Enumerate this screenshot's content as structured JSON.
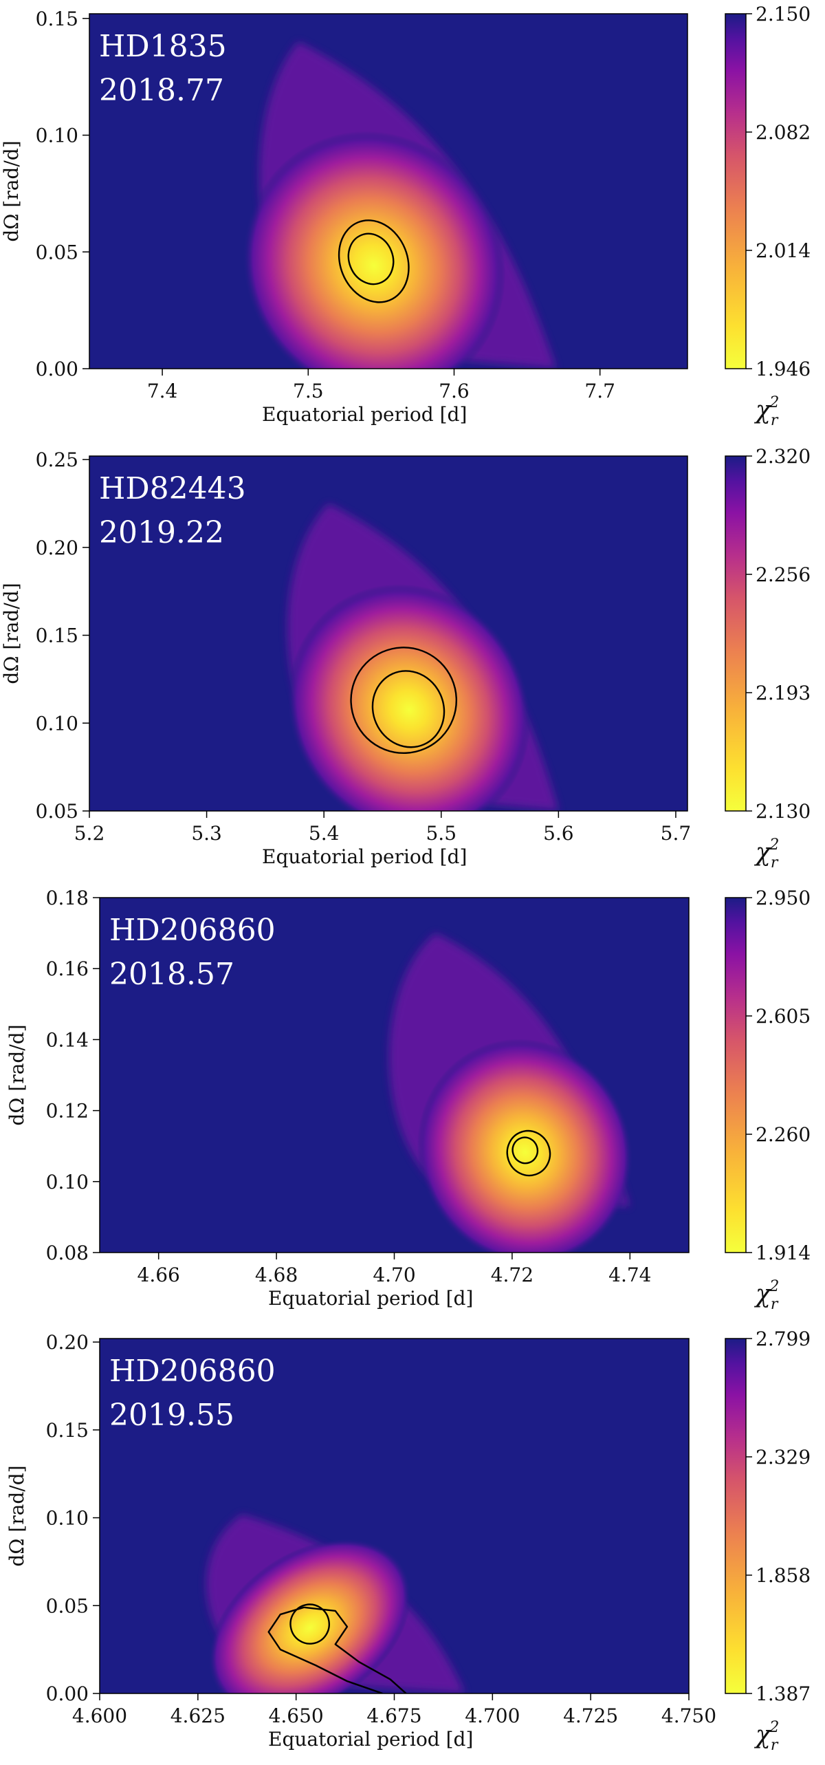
{
  "figure": {
    "cbar_symbol": "χ",
    "cbar_sub": "r",
    "cbar_sup": "2"
  },
  "chart_data": [
    {
      "type": "heatmap",
      "star": "HD1835",
      "epoch": "2018.77",
      "xlabel": "Equatorial period [d]",
      "ylabel": "dΩ [rad/d]",
      "xlim": [
        7.35,
        7.76
      ],
      "ylim": [
        0.0,
        0.152
      ],
      "xticks": [
        {
          "v": 7.4,
          "t": "7.4"
        },
        {
          "v": 7.5,
          "t": "7.5"
        },
        {
          "v": 7.6,
          "t": "7.6"
        },
        {
          "v": 7.7,
          "t": "7.7"
        }
      ],
      "yticks": [
        {
          "v": 0.0,
          "t": "0.00"
        },
        {
          "v": 0.05,
          "t": "0.05"
        },
        {
          "v": 0.1,
          "t": "0.10"
        },
        {
          "v": 0.15,
          "t": "0.15"
        }
      ],
      "cbar_ticks": [
        "2.150",
        "2.082",
        "2.014",
        "1.946"
      ],
      "cbar_range": [
        1.946,
        2.15
      ],
      "minimum": {
        "x": 7.543,
        "y": 0.046
      },
      "extent": {
        "x_low": 7.46,
        "x_high": 7.67,
        "y_high": 0.14,
        "y_low": 0.0
      },
      "contours": [
        {
          "cx": 7.543,
          "cy": 0.047,
          "rx": 0.015,
          "ry": 0.011,
          "tilt": 1.1
        },
        {
          "cx": 7.545,
          "cy": 0.046,
          "rx": 0.023,
          "ry": 0.018,
          "tilt": 1.1
        }
      ]
    },
    {
      "type": "heatmap",
      "star": "HD82443",
      "epoch": "2019.22",
      "xlabel": "Equatorial period [d]",
      "ylabel": "dΩ [rad/d]",
      "xlim": [
        5.2,
        5.71
      ],
      "ylim": [
        0.05,
        0.252
      ],
      "xticks": [
        {
          "v": 5.2,
          "t": "5.2"
        },
        {
          "v": 5.3,
          "t": "5.3"
        },
        {
          "v": 5.4,
          "t": "5.4"
        },
        {
          "v": 5.5,
          "t": "5.5"
        },
        {
          "v": 5.6,
          "t": "5.6"
        },
        {
          "v": 5.7,
          "t": "5.7"
        }
      ],
      "yticks": [
        {
          "v": 0.05,
          "t": "0.05"
        },
        {
          "v": 0.1,
          "t": "0.10"
        },
        {
          "v": 0.15,
          "t": "0.15"
        },
        {
          "v": 0.2,
          "t": "0.20"
        },
        {
          "v": 0.25,
          "t": "0.25"
        }
      ],
      "cbar_ticks": [
        "2.320",
        "2.256",
        "2.193",
        "2.130"
      ],
      "cbar_range": [
        2.13,
        2.32
      ],
      "minimum": {
        "x": 5.47,
        "y": 0.11
      },
      "extent": {
        "x_low": 5.36,
        "x_high": 5.6,
        "y_high": 0.225,
        "y_low": 0.05
      },
      "contours": [
        {
          "cx": 5.472,
          "cy": 0.108,
          "rx": 0.03,
          "ry": 0.022,
          "tilt": 1.2
        },
        {
          "cx": 5.468,
          "cy": 0.113,
          "rx": 0.045,
          "ry": 0.03,
          "tilt": 1.2
        }
      ]
    },
    {
      "type": "heatmap",
      "star": "HD206860",
      "epoch": "2018.57",
      "xlabel": "Equatorial period [d]",
      "ylabel": "dΩ [rad/d]",
      "xlim": [
        4.65,
        4.75
      ],
      "ylim": [
        0.08,
        0.18
      ],
      "xticks": [
        {
          "v": 4.66,
          "t": "4.66"
        },
        {
          "v": 4.68,
          "t": "4.68"
        },
        {
          "v": 4.7,
          "t": "4.70"
        },
        {
          "v": 4.72,
          "t": "4.72"
        },
        {
          "v": 4.74,
          "t": "4.74"
        }
      ],
      "yticks": [
        {
          "v": 0.08,
          "t": "0.08"
        },
        {
          "v": 0.1,
          "t": "0.10"
        },
        {
          "v": 0.12,
          "t": "0.12"
        },
        {
          "v": 0.14,
          "t": "0.14"
        },
        {
          "v": 0.16,
          "t": "0.16"
        },
        {
          "v": 0.18,
          "t": "0.18"
        }
      ],
      "cbar_ticks": [
        "2.950",
        "2.605",
        "2.260",
        "1.914"
      ],
      "cbar_range": [
        1.914,
        2.95
      ],
      "minimum": {
        "x": 4.722,
        "y": 0.109
      },
      "extent": {
        "x_low": 4.697,
        "x_high": 4.74,
        "y_high": 0.17,
        "y_low": 0.093
      },
      "contours": [
        {
          "cx": 4.7222,
          "cy": 0.1088,
          "rx": 0.0022,
          "ry": 0.0035,
          "tilt": 0.9
        },
        {
          "cx": 4.7228,
          "cy": 0.108,
          "rx": 0.0038,
          "ry": 0.006,
          "tilt": 0.9
        }
      ]
    },
    {
      "type": "heatmap",
      "star": "HD206860",
      "epoch": "2019.55",
      "xlabel": "Equatorial period [d]",
      "ylabel": "dΩ [rad/d]",
      "xlim": [
        4.6,
        4.75
      ],
      "ylim": [
        0.0,
        0.202
      ],
      "xticks": [
        {
          "v": 4.6,
          "t": "4.600"
        },
        {
          "v": 4.625,
          "t": "4.625"
        },
        {
          "v": 4.65,
          "t": "4.650"
        },
        {
          "v": 4.675,
          "t": "4.675"
        },
        {
          "v": 4.7,
          "t": "4.700"
        },
        {
          "v": 4.725,
          "t": "4.725"
        },
        {
          "v": 4.75,
          "t": "4.750"
        }
      ],
      "yticks": [
        {
          "v": 0.0,
          "t": "0.00"
        },
        {
          "v": 0.05,
          "t": "0.05"
        },
        {
          "v": 0.1,
          "t": "0.10"
        },
        {
          "v": 0.15,
          "t": "0.15"
        },
        {
          "v": 0.2,
          "t": "0.20"
        }
      ],
      "cbar_ticks": [
        "2.799",
        "2.329",
        "1.858",
        "1.387"
      ],
      "cbar_range": [
        1.387,
        2.799
      ],
      "minimum": {
        "x": 4.653,
        "y": 0.039
      },
      "extent": {
        "x_low": 4.625,
        "x_high": 4.693,
        "y_high": 0.102,
        "y_low": 0.0
      },
      "contours": [
        {
          "cx": 4.6535,
          "cy": 0.0395,
          "rx": 0.005,
          "ry": 0.011,
          "tilt": 0.6
        }
      ],
      "contour_path": [
        [
          4.652,
          0.049
        ],
        [
          4.646,
          0.045
        ],
        [
          4.643,
          0.035
        ],
        [
          4.646,
          0.025
        ],
        [
          4.655,
          0.016
        ],
        [
          4.663,
          0.007
        ],
        [
          4.672,
          0.0
        ]
      ],
      "contour_path2": [
        [
          4.652,
          0.049
        ],
        [
          4.66,
          0.047
        ],
        [
          4.663,
          0.038
        ],
        [
          4.66,
          0.028
        ],
        [
          4.666,
          0.018
        ],
        [
          4.674,
          0.008
        ],
        [
          4.678,
          0.0
        ]
      ]
    }
  ]
}
